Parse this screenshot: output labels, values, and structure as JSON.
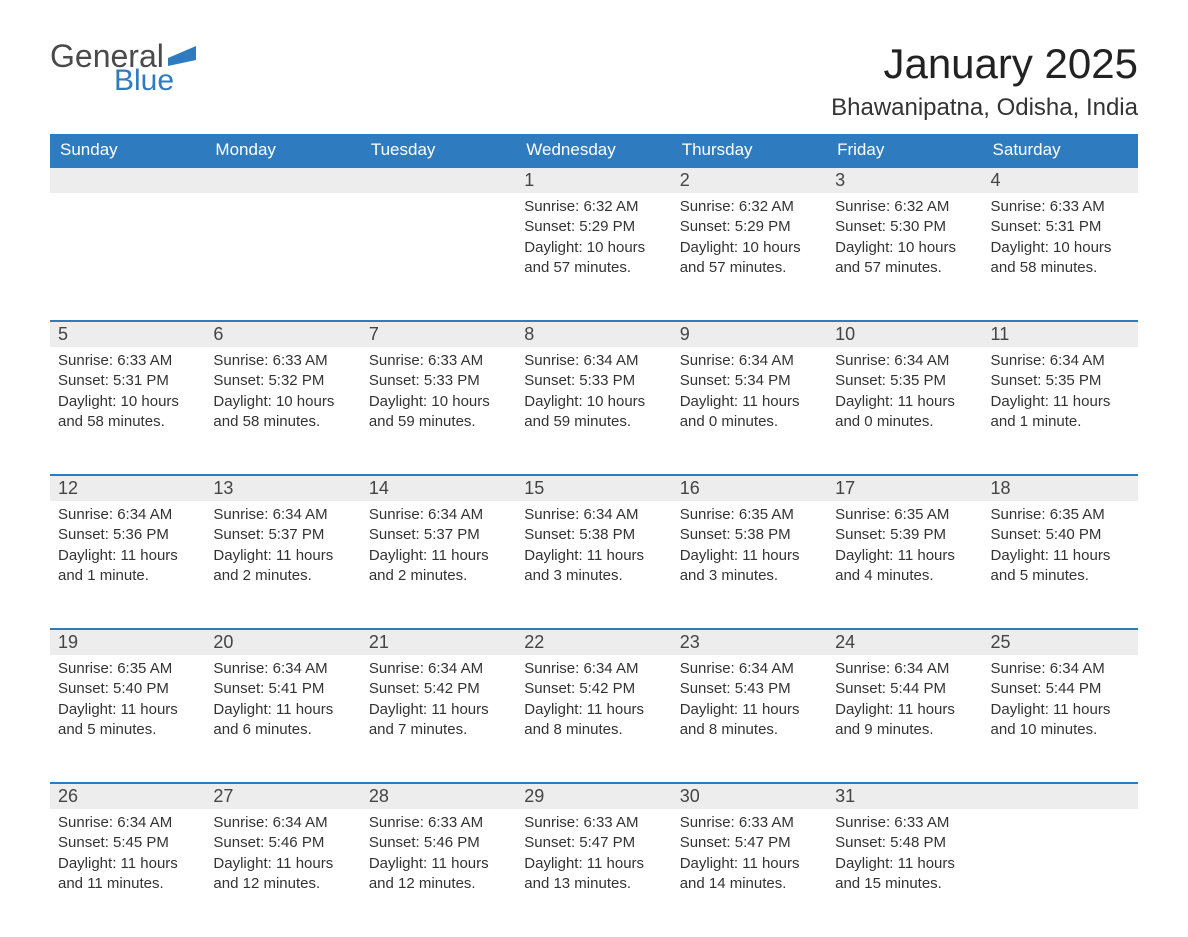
{
  "logo": {
    "general": "General",
    "blue": "Blue",
    "flag_color": "#2f7bbf"
  },
  "title": "January 2025",
  "location": "Bhawanipatna, Odisha, India",
  "colors": {
    "header_bg": "#2f7bbf",
    "header_text": "#ffffff",
    "daynum_bg": "#ededed",
    "border": "#2f7bbf",
    "text": "#333333",
    "page_bg": "#ffffff"
  },
  "typography": {
    "title_fontsize": 42,
    "location_fontsize": 24,
    "header_fontsize": 17,
    "daynum_fontsize": 18,
    "cell_fontsize": 15
  },
  "weekdays": [
    "Sunday",
    "Monday",
    "Tuesday",
    "Wednesday",
    "Thursday",
    "Friday",
    "Saturday"
  ],
  "weeks": [
    [
      null,
      null,
      null,
      {
        "n": "1",
        "sunrise": "Sunrise: 6:32 AM",
        "sunset": "Sunset: 5:29 PM",
        "daylight": "Daylight: 10 hours and 57 minutes."
      },
      {
        "n": "2",
        "sunrise": "Sunrise: 6:32 AM",
        "sunset": "Sunset: 5:29 PM",
        "daylight": "Daylight: 10 hours and 57 minutes."
      },
      {
        "n": "3",
        "sunrise": "Sunrise: 6:32 AM",
        "sunset": "Sunset: 5:30 PM",
        "daylight": "Daylight: 10 hours and 57 minutes."
      },
      {
        "n": "4",
        "sunrise": "Sunrise: 6:33 AM",
        "sunset": "Sunset: 5:31 PM",
        "daylight": "Daylight: 10 hours and 58 minutes."
      }
    ],
    [
      {
        "n": "5",
        "sunrise": "Sunrise: 6:33 AM",
        "sunset": "Sunset: 5:31 PM",
        "daylight": "Daylight: 10 hours and 58 minutes."
      },
      {
        "n": "6",
        "sunrise": "Sunrise: 6:33 AM",
        "sunset": "Sunset: 5:32 PM",
        "daylight": "Daylight: 10 hours and 58 minutes."
      },
      {
        "n": "7",
        "sunrise": "Sunrise: 6:33 AM",
        "sunset": "Sunset: 5:33 PM",
        "daylight": "Daylight: 10 hours and 59 minutes."
      },
      {
        "n": "8",
        "sunrise": "Sunrise: 6:34 AM",
        "sunset": "Sunset: 5:33 PM",
        "daylight": "Daylight: 10 hours and 59 minutes."
      },
      {
        "n": "9",
        "sunrise": "Sunrise: 6:34 AM",
        "sunset": "Sunset: 5:34 PM",
        "daylight": "Daylight: 11 hours and 0 minutes."
      },
      {
        "n": "10",
        "sunrise": "Sunrise: 6:34 AM",
        "sunset": "Sunset: 5:35 PM",
        "daylight": "Daylight: 11 hours and 0 minutes."
      },
      {
        "n": "11",
        "sunrise": "Sunrise: 6:34 AM",
        "sunset": "Sunset: 5:35 PM",
        "daylight": "Daylight: 11 hours and 1 minute."
      }
    ],
    [
      {
        "n": "12",
        "sunrise": "Sunrise: 6:34 AM",
        "sunset": "Sunset: 5:36 PM",
        "daylight": "Daylight: 11 hours and 1 minute."
      },
      {
        "n": "13",
        "sunrise": "Sunrise: 6:34 AM",
        "sunset": "Sunset: 5:37 PM",
        "daylight": "Daylight: 11 hours and 2 minutes."
      },
      {
        "n": "14",
        "sunrise": "Sunrise: 6:34 AM",
        "sunset": "Sunset: 5:37 PM",
        "daylight": "Daylight: 11 hours and 2 minutes."
      },
      {
        "n": "15",
        "sunrise": "Sunrise: 6:34 AM",
        "sunset": "Sunset: 5:38 PM",
        "daylight": "Daylight: 11 hours and 3 minutes."
      },
      {
        "n": "16",
        "sunrise": "Sunrise: 6:35 AM",
        "sunset": "Sunset: 5:38 PM",
        "daylight": "Daylight: 11 hours and 3 minutes."
      },
      {
        "n": "17",
        "sunrise": "Sunrise: 6:35 AM",
        "sunset": "Sunset: 5:39 PM",
        "daylight": "Daylight: 11 hours and 4 minutes."
      },
      {
        "n": "18",
        "sunrise": "Sunrise: 6:35 AM",
        "sunset": "Sunset: 5:40 PM",
        "daylight": "Daylight: 11 hours and 5 minutes."
      }
    ],
    [
      {
        "n": "19",
        "sunrise": "Sunrise: 6:35 AM",
        "sunset": "Sunset: 5:40 PM",
        "daylight": "Daylight: 11 hours and 5 minutes."
      },
      {
        "n": "20",
        "sunrise": "Sunrise: 6:34 AM",
        "sunset": "Sunset: 5:41 PM",
        "daylight": "Daylight: 11 hours and 6 minutes."
      },
      {
        "n": "21",
        "sunrise": "Sunrise: 6:34 AM",
        "sunset": "Sunset: 5:42 PM",
        "daylight": "Daylight: 11 hours and 7 minutes."
      },
      {
        "n": "22",
        "sunrise": "Sunrise: 6:34 AM",
        "sunset": "Sunset: 5:42 PM",
        "daylight": "Daylight: 11 hours and 8 minutes."
      },
      {
        "n": "23",
        "sunrise": "Sunrise: 6:34 AM",
        "sunset": "Sunset: 5:43 PM",
        "daylight": "Daylight: 11 hours and 8 minutes."
      },
      {
        "n": "24",
        "sunrise": "Sunrise: 6:34 AM",
        "sunset": "Sunset: 5:44 PM",
        "daylight": "Daylight: 11 hours and 9 minutes."
      },
      {
        "n": "25",
        "sunrise": "Sunrise: 6:34 AM",
        "sunset": "Sunset: 5:44 PM",
        "daylight": "Daylight: 11 hours and 10 minutes."
      }
    ],
    [
      {
        "n": "26",
        "sunrise": "Sunrise: 6:34 AM",
        "sunset": "Sunset: 5:45 PM",
        "daylight": "Daylight: 11 hours and 11 minutes."
      },
      {
        "n": "27",
        "sunrise": "Sunrise: 6:34 AM",
        "sunset": "Sunset: 5:46 PM",
        "daylight": "Daylight: 11 hours and 12 minutes."
      },
      {
        "n": "28",
        "sunrise": "Sunrise: 6:33 AM",
        "sunset": "Sunset: 5:46 PM",
        "daylight": "Daylight: 11 hours and 12 minutes."
      },
      {
        "n": "29",
        "sunrise": "Sunrise: 6:33 AM",
        "sunset": "Sunset: 5:47 PM",
        "daylight": "Daylight: 11 hours and 13 minutes."
      },
      {
        "n": "30",
        "sunrise": "Sunrise: 6:33 AM",
        "sunset": "Sunset: 5:47 PM",
        "daylight": "Daylight: 11 hours and 14 minutes."
      },
      {
        "n": "31",
        "sunrise": "Sunrise: 6:33 AM",
        "sunset": "Sunset: 5:48 PM",
        "daylight": "Daylight: 11 hours and 15 minutes."
      },
      null
    ]
  ]
}
